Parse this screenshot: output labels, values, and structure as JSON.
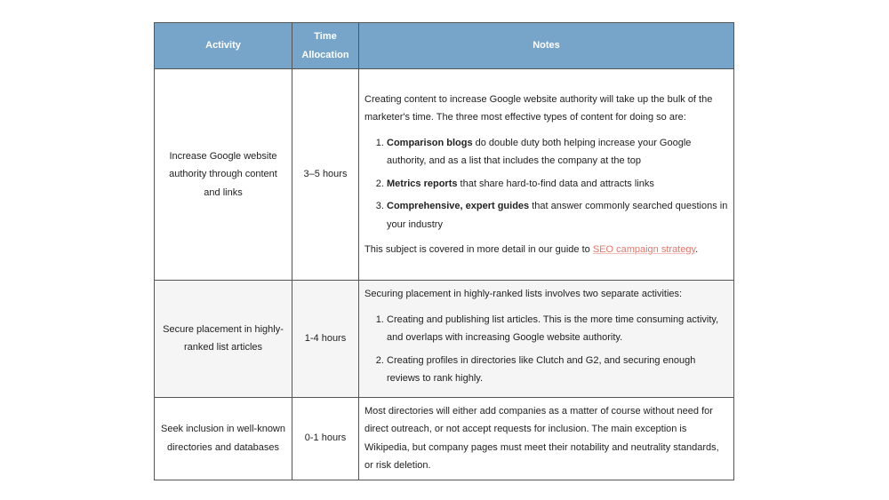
{
  "header": {
    "activity": "Activity",
    "time": "Time Allocation",
    "notes": "Notes"
  },
  "rows": [
    {
      "activity": "Increase Google website authority through content and links",
      "time": "3–5 hours",
      "intro": "Creating content to increase Google website authority will take up the bulk of the marketer's time. The three most effective types of content for doing so are:",
      "items": [
        {
          "bold": "Comparison blogs",
          "text": " do double duty both helping increase your Google authority, and as a list that includes the company at the top"
        },
        {
          "bold": "Metrics reports",
          "text": " that share hard-to-find data and attracts links"
        },
        {
          "bold": "Comprehensive, expert guides",
          "text": " that answer commonly searched questions in your industry"
        }
      ],
      "outro": "This subject is covered in more detail in our guide to ",
      "link": "SEO campaign strategy",
      "outro_end": "."
    },
    {
      "activity": "Secure placement in highly-ranked list articles",
      "time": "1-4 hours",
      "intro": "Securing placement in highly-ranked lists involves two separate activities:",
      "items": [
        {
          "text": "Creating and publishing list articles. This is the more time consuming activity, and overlaps with increasing Google website authority."
        },
        {
          "text": "Creating profiles in directories like Clutch and G2, and securing enough reviews to rank highly."
        }
      ]
    },
    {
      "activity": "Seek inclusion in well-known directories and databases",
      "time": "0-1 hours",
      "notes": "Most directories will either add companies as a matter of course without need for direct outreach, or not accept requests for inclusion. The main exception is Wikipedia, but company pages must meet their notability and neutrality standards, or risk deletion."
    }
  ],
  "colors": {
    "header_bg": "#77a5c9",
    "link": "#e8766a",
    "alt_row": "#f5f5f5"
  }
}
